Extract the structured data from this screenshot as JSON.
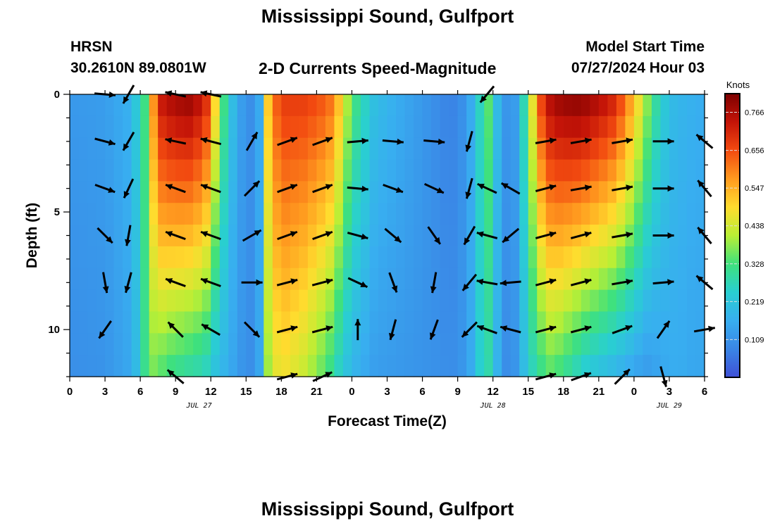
{
  "header": {
    "title": "Mississippi Sound, Gulfport",
    "station": "HRSN",
    "coords": "30.2610N  89.0801W",
    "subtitle": "2-D Currents Speed-Magnitude",
    "model_start_label": "Model Start Time",
    "model_start_value": "07/27/2024 Hour 03",
    "footer_title": "Mississippi Sound, Gulfport"
  },
  "chart_data": {
    "type": "heatmap",
    "xlabel": "Forecast Time(Z)",
    "ylabel": "Depth (ft)",
    "x_tick_labels": [
      "0",
      "3",
      "6",
      "9",
      "12",
      "15",
      "18",
      "21",
      "0",
      "3",
      "6",
      "9",
      "12",
      "15",
      "18",
      "21",
      "0",
      "3",
      "6"
    ],
    "x_range_hours": [
      0,
      54
    ],
    "date_labels": [
      {
        "text": "JUL 27",
        "hour": 11
      },
      {
        "text": "JUL 28",
        "hour": 36
      },
      {
        "text": "JUL 29",
        "hour": 51
      }
    ],
    "y_tick_labels": [
      "0",
      "5",
      "10"
    ],
    "y_tick_values": [
      0,
      5,
      10
    ],
    "ylim": [
      0,
      12
    ],
    "y_inverted": true,
    "colorbar": {
      "label": "Knots",
      "ticks": [
        "0.766",
        "0.656",
        "0.547",
        "0.438",
        "0.328",
        "0.219",
        "0.109"
      ],
      "tick_values": [
        0.766,
        0.656,
        0.547,
        0.438,
        0.328,
        0.219,
        0.109
      ],
      "range": [
        0.0,
        0.82
      ],
      "colors": [
        "#3f50d6",
        "#3a86e6",
        "#38aef0",
        "#29cfd1",
        "#3fe17c",
        "#b9ef35",
        "#ffdc2e",
        "#ff9a1f",
        "#f24a10",
        "#c41408",
        "#7d0000"
      ]
    },
    "speed_profile": {
      "hours": [
        0,
        3,
        5,
        6,
        6.5,
        7,
        7.5,
        8,
        10,
        11.5,
        12,
        13,
        14,
        15,
        16,
        16.5,
        17,
        18,
        20,
        22,
        23,
        24,
        26,
        30,
        32,
        33,
        34,
        35,
        35.5,
        36,
        37,
        37.5,
        38,
        39,
        40,
        41,
        42,
        43,
        44,
        46,
        47,
        48,
        49,
        50,
        51,
        52,
        53,
        54
      ],
      "surface": [
        0.12,
        0.13,
        0.17,
        0.26,
        0.34,
        0.55,
        0.7,
        0.76,
        0.8,
        0.74,
        0.6,
        0.34,
        0.18,
        0.1,
        0.1,
        0.32,
        0.58,
        0.68,
        0.68,
        0.64,
        0.52,
        0.34,
        0.2,
        0.12,
        0.08,
        0.08,
        0.14,
        0.28,
        0.38,
        0.24,
        0.12,
        0.1,
        0.14,
        0.36,
        0.66,
        0.78,
        0.8,
        0.81,
        0.8,
        0.74,
        0.66,
        0.54,
        0.4,
        0.28,
        0.2,
        0.18,
        0.17,
        0.16
      ],
      "bottom": [
        0.1,
        0.11,
        0.15,
        0.22,
        0.34,
        0.36,
        0.36,
        0.32,
        0.28,
        0.26,
        0.22,
        0.18,
        0.14,
        0.1,
        0.1,
        0.3,
        0.42,
        0.48,
        0.42,
        0.32,
        0.24,
        0.18,
        0.13,
        0.11,
        0.1,
        0.1,
        0.14,
        0.26,
        0.3,
        0.22,
        0.1,
        0.09,
        0.12,
        0.24,
        0.3,
        0.34,
        0.3,
        0.26,
        0.22,
        0.18,
        0.16,
        0.14,
        0.12,
        0.14,
        0.16,
        0.16,
        0.15,
        0.15
      ]
    },
    "arrow_depths": [
      0,
      2,
      4,
      6,
      8,
      10,
      12
    ],
    "arrow_columns": [
      {
        "hour": 3,
        "angles": [
          5,
          15,
          20,
          45,
          80,
          125,
          null
        ]
      },
      {
        "hour": 5,
        "angles": [
          120,
          120,
          115,
          100,
          105,
          null,
          null
        ]
      },
      {
        "hour": 9,
        "angles": [
          -168,
          -168,
          -160,
          -160,
          -160,
          -135,
          -140
        ]
      },
      {
        "hour": 12,
        "angles": [
          -168,
          -165,
          -160,
          -160,
          -160,
          -150,
          null
        ]
      },
      {
        "hour": 15.5,
        "angles": [
          null,
          -60,
          -45,
          -30,
          0,
          45,
          null
        ]
      },
      {
        "hour": 18.5,
        "angles": [
          null,
          -20,
          -20,
          -20,
          -15,
          -15,
          -15
        ]
      },
      {
        "hour": 21.5,
        "angles": [
          null,
          -20,
          -20,
          -20,
          -15,
          -15,
          -25
        ]
      },
      {
        "hour": 24.5,
        "angles": [
          null,
          -5,
          5,
          15,
          25,
          -90,
          null
        ]
      },
      {
        "hour": 27.5,
        "angles": [
          null,
          5,
          20,
          40,
          70,
          105,
          null
        ]
      },
      {
        "hour": 31,
        "angles": [
          null,
          5,
          25,
          55,
          100,
          110,
          null
        ]
      },
      {
        "hour": 34,
        "angles": [
          null,
          105,
          105,
          120,
          130,
          135,
          null
        ]
      },
      {
        "hour": 35.5,
        "angles": [
          130,
          null,
          -155,
          -165,
          -170,
          -160,
          null
        ]
      },
      {
        "hour": 37.5,
        "angles": [
          null,
          null,
          -150,
          140,
          175,
          -165,
          null
        ]
      },
      {
        "hour": 40.5,
        "angles": [
          null,
          -10,
          -15,
          -15,
          -15,
          -15,
          -15
        ]
      },
      {
        "hour": 43.5,
        "angles": [
          null,
          -10,
          -10,
          -15,
          -15,
          -15,
          -20
        ]
      },
      {
        "hour": 47,
        "angles": [
          null,
          -10,
          -10,
          -10,
          -10,
          -20,
          -45
        ]
      },
      {
        "hour": 50.5,
        "angles": [
          null,
          0,
          0,
          0,
          -5,
          -55,
          75
        ]
      },
      {
        "hour": 54,
        "angles": [
          null,
          -140,
          -130,
          -130,
          -140,
          -10,
          null
        ]
      }
    ]
  }
}
